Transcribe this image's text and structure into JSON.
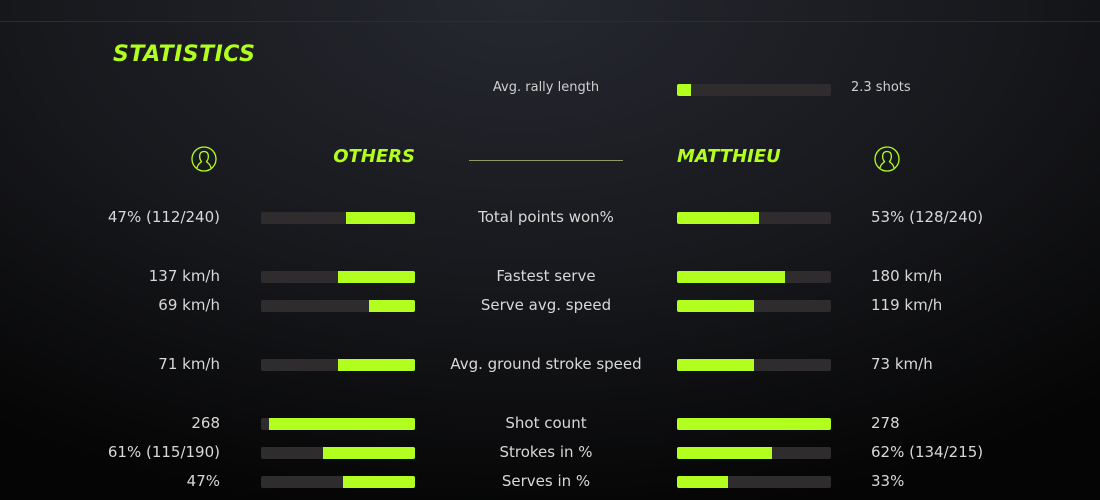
{
  "title": "STATISTICS",
  "accent": "#b2ff1f",
  "rally": {
    "label": "Avg. rally length",
    "value": "2.3 shots",
    "fill": 0.09
  },
  "players": {
    "left": {
      "name": "OTHERS",
      "icon": "user-circle-icon"
    },
    "right": {
      "name": "MATTHIEU",
      "icon": "user-circle-icon"
    }
  },
  "stats": [
    {
      "label": "Total points won%",
      "left": "47% (112/240)",
      "right": "53% (128/240)",
      "left_fill": 0.45,
      "right_fill": 0.53
    },
    {
      "label": "Fastest serve",
      "left": "137 km/h",
      "right": "180 km/h",
      "left_fill": 0.5,
      "right_fill": 0.7
    },
    {
      "label": "Serve avg. speed",
      "left": "69 km/h",
      "right": "119 km/h",
      "left_fill": 0.3,
      "right_fill": 0.5
    },
    {
      "label": "Avg. ground stroke speed",
      "left": "71 km/h",
      "right": "73 km/h",
      "left_fill": 0.5,
      "right_fill": 0.5
    },
    {
      "label": "Shot count",
      "left": "268",
      "right": "278",
      "left_fill": 0.95,
      "right_fill": 1.0
    },
    {
      "label": "Strokes in %",
      "left": "61% (115/190)",
      "right": "62% (134/215)",
      "left_fill": 0.6,
      "right_fill": 0.62
    },
    {
      "label": "Serves in %",
      "left": "47%",
      "right": "33%",
      "left_fill": 0.47,
      "right_fill": 0.33
    }
  ]
}
